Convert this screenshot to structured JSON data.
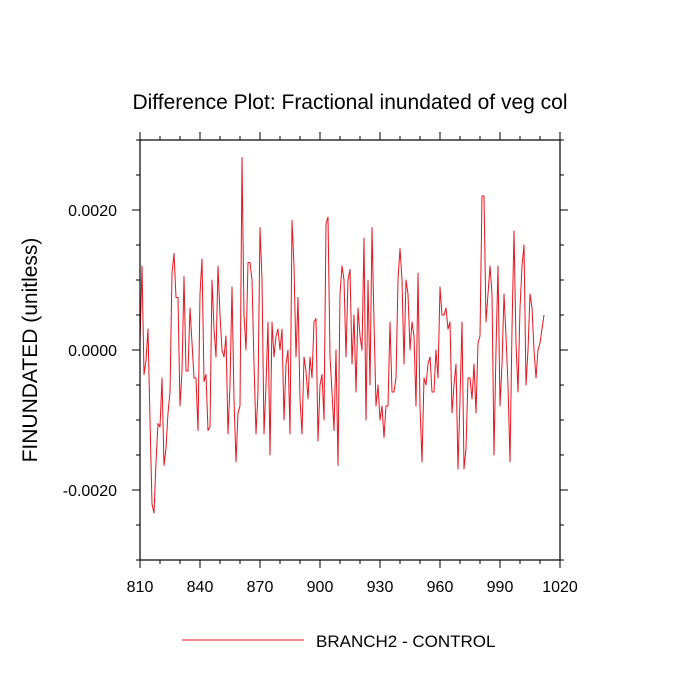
{
  "chart_data": {
    "type": "line",
    "title": "Difference Plot: Fractional inundated of veg col",
    "xlabel": "",
    "ylabel": "FINUNDATED  (unitless)",
    "xlim": [
      810,
      1020
    ],
    "ylim": [
      -0.003,
      0.003
    ],
    "x_ticks": [
      810,
      840,
      870,
      900,
      930,
      960,
      990,
      1020
    ],
    "x_tick_labels": [
      "810",
      "840",
      "870",
      "900",
      "930",
      "960",
      "990",
      "1020"
    ],
    "y_ticks": [
      -0.002,
      0.0,
      0.002
    ],
    "y_tick_labels": [
      "-0.0020",
      "0.0000",
      "0.0020"
    ],
    "grid": false,
    "legend": "bottom-center",
    "series": [
      {
        "name": "BRANCH2 - CONTROL",
        "color": "#e8141e",
        "x_start": 810,
        "x_step": 1,
        "values": [
          0.0001,
          0.0012,
          -0.00035,
          -0.00015,
          0.0003,
          -0.001,
          -0.0022,
          -0.00233,
          -0.0016,
          -0.00105,
          -0.0011,
          -0.0004,
          -0.00165,
          -0.0014,
          -0.0009,
          -0.0006,
          0.0011,
          0.00138,
          0.00075,
          0.00075,
          -0.0008,
          -0.0003,
          0.00105,
          -0.0003,
          -0.0003,
          0.0006,
          0.0001,
          -0.0004,
          -0.0004,
          -0.00115,
          0.0008,
          0.0013,
          -0.00045,
          -0.00035,
          -0.00115,
          -0.0011,
          0.001,
          0.0003,
          -0.0001,
          0.0012,
          0.0005,
          0.0,
          -0.0001,
          0.0002,
          -0.0012,
          -0.0005,
          0.0009,
          -0.0007,
          -0.0016,
          -0.0009,
          -0.0008,
          0.00275,
          0.0005,
          0.0,
          0.00125,
          0.00125,
          0.001,
          -0.0002,
          -0.0012,
          -0.0006,
          0.00175,
          0.001,
          -0.0012,
          -0.0005,
          0.0004,
          -0.0015,
          0.0004,
          -0.0001,
          0.0002,
          0.0003,
          0.0,
          0.0003,
          -0.001,
          -0.0002,
          0.0,
          -0.0012,
          0.00185,
          0.0012,
          -0.0001,
          0.00075,
          -0.0007,
          -0.0012,
          -0.0001,
          -0.0003,
          -0.0007,
          -0.0001,
          -0.0004,
          0.0004,
          0.00045,
          -0.0013,
          -0.0005,
          -0.00035,
          -0.001,
          0.0018,
          0.0019,
          -0.0001,
          -0.0006,
          -0.00115,
          0.0,
          -0.00165,
          0.0008,
          0.0012,
          0.001,
          -0.0001,
          0.001,
          0.00115,
          -0.0002,
          0.0005,
          -0.0006,
          0.0006,
          0.0002,
          0.0,
          0.0016,
          -0.001,
          0.001,
          -0.0005,
          0.00175,
          0.0004,
          -0.0008,
          -0.0005,
          -0.001,
          -0.0008,
          -0.00125,
          -0.0008,
          -0.0008,
          0.0004,
          -0.0006,
          -0.0006,
          -0.0004,
          0.001,
          0.00145,
          0.001,
          -0.0002,
          0.001,
          0.0008,
          0.0,
          0.0004,
          0.0002,
          -0.0008,
          0.0011,
          -0.0008,
          -0.0016,
          -0.0004,
          -0.0005,
          -0.0002,
          -0.0001,
          -0.0006,
          -0.0006,
          0.0,
          -0.0004,
          0.0009,
          0.0005,
          0.0005,
          0.0006,
          0.0003,
          0.0004,
          -0.0009,
          -0.0005,
          -0.0002,
          -0.0017,
          -0.0007,
          0.0004,
          -0.0017,
          -0.0014,
          -0.0004,
          -0.0004,
          -0.0007,
          -0.0002,
          -0.0009,
          0.0001,
          0.0002,
          0.0022,
          0.0022,
          0.0004,
          0.0008,
          0.0012,
          0.0008,
          -0.0015,
          0.0,
          0.0012,
          -0.0008,
          -0.0002,
          0.0008,
          0.0002,
          -0.0005,
          -0.0016,
          0.0003,
          0.0017,
          0.0001,
          -0.0006,
          0.0006,
          0.0012,
          0.0015,
          -0.0005,
          0.0,
          0.0008,
          0.0006,
          0.0,
          -0.0004,
          0.0,
          0.0001,
          0.0003,
          0.0005
        ]
      }
    ]
  }
}
